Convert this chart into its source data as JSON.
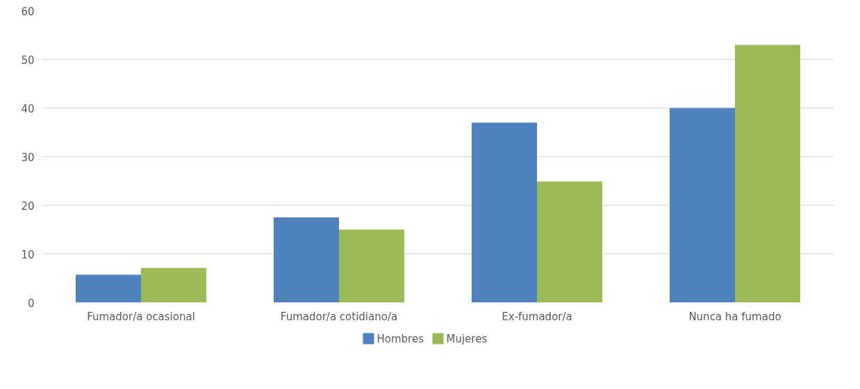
{
  "chart_data": {
    "type": "bar",
    "categories": [
      "Fumador/a ocasional",
      "Fumador/a cotidiano/a",
      "Ex-fumador/a",
      "Nunca ha fumado"
    ],
    "series": [
      {
        "name": "Hombres",
        "color": "#4f81bd",
        "values": [
          5.7,
          17.5,
          37,
          40
        ]
      },
      {
        "name": "Mujeres",
        "color": "#9bbb59",
        "values": [
          7.1,
          15,
          24.9,
          53
        ]
      }
    ],
    "ylim": [
      0,
      60
    ],
    "yticks": [
      0,
      10,
      20,
      30,
      40,
      50,
      60
    ],
    "grid": "y",
    "legend": "bottom"
  }
}
